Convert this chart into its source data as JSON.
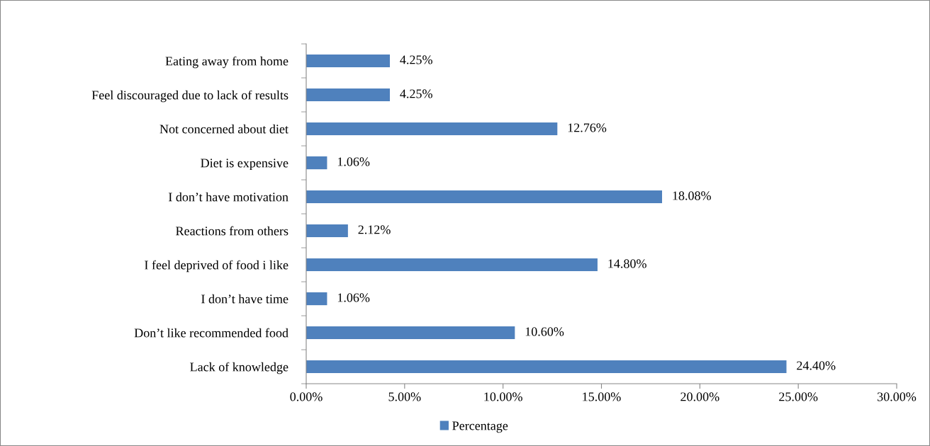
{
  "chart_data": {
    "type": "bar",
    "orientation": "horizontal",
    "categories": [
      "Eating away from home",
      "Feel discouraged due to lack of results",
      "Not concerned about diet",
      "Diet is expensive",
      "I don’t have motivation",
      "Reactions from others",
      "I feel deprived of food i like",
      "I don’t have time",
      "Don’t like recommended food",
      "Lack of knowledge"
    ],
    "series": [
      {
        "name": "Percentage",
        "color": "#4f81bd",
        "values": [
          4.25,
          4.25,
          12.76,
          1.06,
          18.08,
          2.12,
          14.8,
          1.06,
          10.6,
          24.4
        ],
        "value_labels": [
          "4.25%",
          "4.25%",
          "12.76%",
          "1.06%",
          "18.08%",
          "2.12%",
          "14.80%",
          "1.06%",
          "10.60%",
          "24.40%"
        ]
      }
    ],
    "xlim": [
      0,
      30
    ],
    "xticks": [
      {
        "value": 0,
        "label": "0.00%"
      },
      {
        "value": 5,
        "label": "5.00%"
      },
      {
        "value": 10,
        "label": "10.00%"
      },
      {
        "value": 15,
        "label": "15.00%"
      },
      {
        "value": 20,
        "label": "20.00%"
      },
      {
        "value": 25,
        "label": "25.00%"
      },
      {
        "value": 30,
        "label": "30.00%"
      }
    ],
    "grid": false,
    "legend": "bottom"
  }
}
